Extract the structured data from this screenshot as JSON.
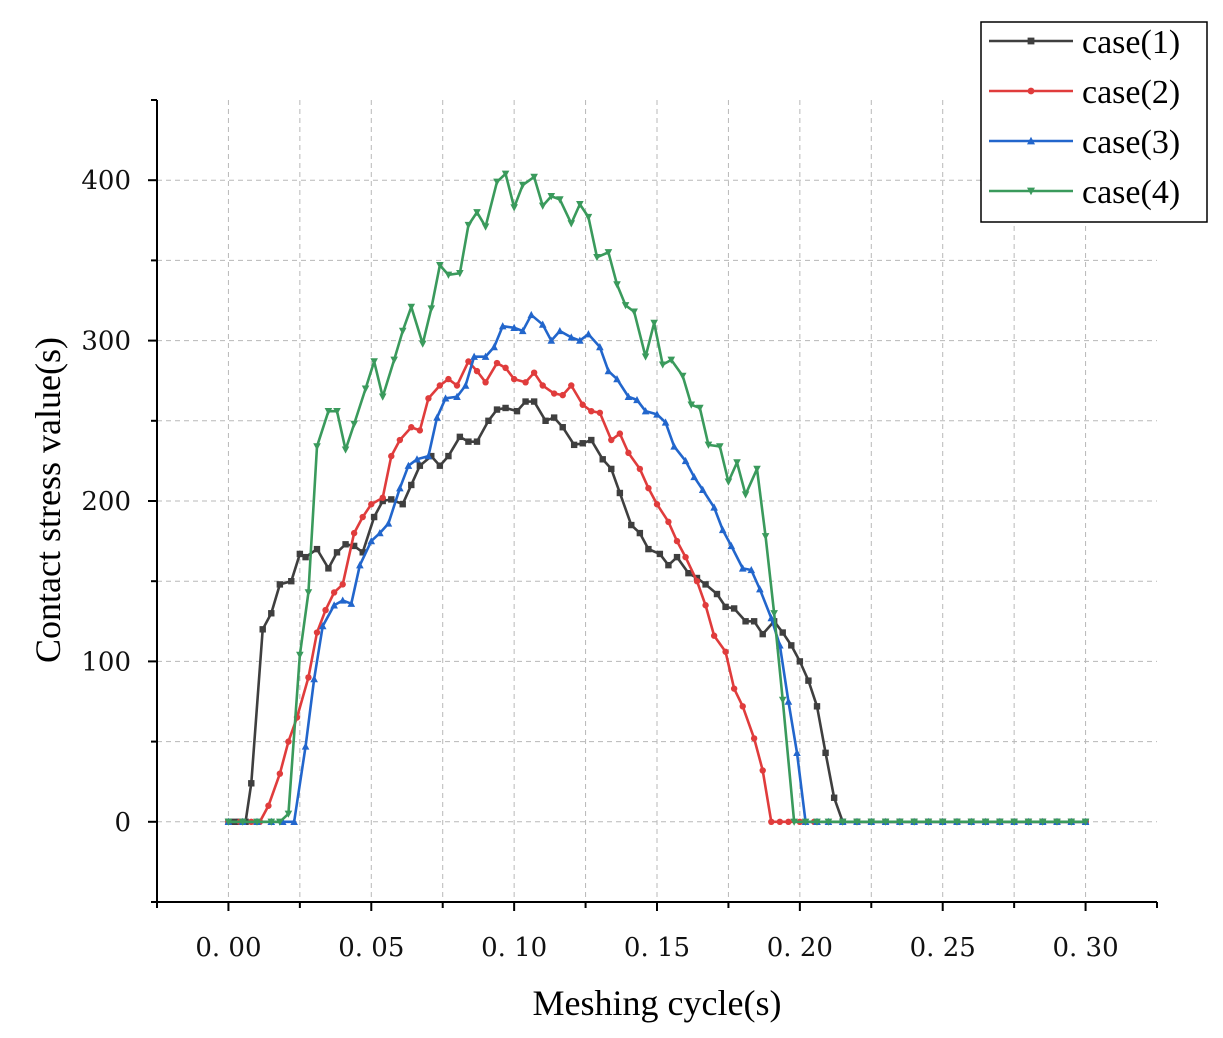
{
  "chart_data": {
    "type": "line",
    "title": "",
    "xlabel": "Meshing cycle(s)",
    "ylabel": "Contact stress value(s)",
    "xlim": [
      -0.025,
      0.325
    ],
    "ylim": [
      -50,
      450
    ],
    "x_ticks": [
      0.0,
      0.05,
      0.1,
      0.15,
      0.2,
      0.25,
      0.3
    ],
    "x_tick_labels": [
      "0. 00",
      "0. 05",
      "0. 10",
      "0. 15",
      "0. 20",
      "0. 25",
      "0. 30"
    ],
    "y_ticks": [
      0,
      100,
      200,
      300,
      400
    ],
    "y_tick_labels": [
      "0",
      "100",
      "200",
      "300",
      "400"
    ],
    "grid": true,
    "legend_position": "top-right",
    "series": [
      {
        "name": "case(1)",
        "color": "#3f3f3f",
        "marker": "square",
        "x": [
          0,
          0.002,
          0.004,
          0.006,
          0.008,
          0.012,
          0.015,
          0.018,
          0.022,
          0.025,
          0.027,
          0.031,
          0.035,
          0.038,
          0.041,
          0.044,
          0.047,
          0.051,
          0.054,
          0.057,
          0.061,
          0.064,
          0.067,
          0.071,
          0.074,
          0.077,
          0.081,
          0.084,
          0.087,
          0.091,
          0.094,
          0.097,
          0.101,
          0.104,
          0.107,
          0.111,
          0.114,
          0.117,
          0.121,
          0.124,
          0.127,
          0.131,
          0.134,
          0.137,
          0.141,
          0.144,
          0.147,
          0.151,
          0.154,
          0.157,
          0.161,
          0.164,
          0.167,
          0.171,
          0.174,
          0.177,
          0.181,
          0.184,
          0.187,
          0.191,
          0.194,
          0.197,
          0.2,
          0.203,
          0.206,
          0.209,
          0.212,
          0.215,
          0.22,
          0.225,
          0.23,
          0.235,
          0.24,
          0.245,
          0.25,
          0.255,
          0.26,
          0.265,
          0.27,
          0.275,
          0.28,
          0.285,
          0.29,
          0.295,
          0.3
        ],
        "y": [
          0,
          0,
          0,
          0,
          24,
          120,
          130,
          148,
          150,
          167,
          165,
          170,
          158,
          168,
          173,
          172,
          168,
          190,
          200,
          201,
          198,
          210,
          222,
          228,
          222,
          228,
          240,
          237,
          237,
          250,
          257,
          258,
          256,
          262,
          262,
          250,
          252,
          246,
          235,
          236,
          238,
          226,
          220,
          205,
          185,
          180,
          170,
          167,
          160,
          165,
          155,
          152,
          148,
          142,
          134,
          133,
          125,
          125,
          117,
          125,
          118,
          110,
          100,
          88,
          72,
          43,
          15,
          0,
          0,
          0,
          0,
          0,
          0,
          0,
          0,
          0,
          0,
          0,
          0,
          0,
          0,
          0,
          0,
          0,
          0
        ]
      },
      {
        "name": "case(2)",
        "color": "#e03c3c",
        "marker": "circle",
        "x": [
          0,
          0.004,
          0.008,
          0.011,
          0.014,
          0.018,
          0.021,
          0.024,
          0.028,
          0.031,
          0.034,
          0.037,
          0.04,
          0.044,
          0.047,
          0.05,
          0.054,
          0.057,
          0.06,
          0.064,
          0.067,
          0.07,
          0.074,
          0.077,
          0.08,
          0.084,
          0.087,
          0.09,
          0.094,
          0.097,
          0.1,
          0.104,
          0.107,
          0.11,
          0.114,
          0.117,
          0.12,
          0.124,
          0.127,
          0.13,
          0.134,
          0.137,
          0.14,
          0.144,
          0.147,
          0.15,
          0.154,
          0.157,
          0.16,
          0.164,
          0.167,
          0.17,
          0.174,
          0.177,
          0.18,
          0.184,
          0.187,
          0.19,
          0.193,
          0.196,
          0.2,
          0.205,
          0.21,
          0.215,
          0.22,
          0.225,
          0.23,
          0.235,
          0.24,
          0.245,
          0.25,
          0.255,
          0.26,
          0.265,
          0.27,
          0.275,
          0.28,
          0.285,
          0.29,
          0.295,
          0.3
        ],
        "y": [
          0,
          0,
          0,
          0,
          10,
          30,
          50,
          65,
          90,
          118,
          132,
          143,
          148,
          180,
          190,
          198,
          202,
          228,
          238,
          246,
          244,
          264,
          272,
          276,
          272,
          287,
          281,
          274,
          286,
          283,
          276,
          274,
          280,
          272,
          267,
          266,
          272,
          260,
          256,
          255,
          238,
          242,
          230,
          220,
          208,
          198,
          187,
          175,
          165,
          150,
          135,
          116,
          106,
          83,
          72,
          52,
          32,
          0,
          0,
          0,
          0,
          0,
          0,
          0,
          0,
          0,
          0,
          0,
          0,
          0,
          0,
          0,
          0,
          0,
          0,
          0,
          0,
          0,
          0,
          0,
          0
        ]
      },
      {
        "name": "case(3)",
        "color": "#2266cc",
        "marker": "triangle-up",
        "x": [
          0,
          0.005,
          0.01,
          0.015,
          0.019,
          0.023,
          0.027,
          0.03,
          0.033,
          0.037,
          0.04,
          0.043,
          0.046,
          0.05,
          0.053,
          0.056,
          0.06,
          0.063,
          0.066,
          0.07,
          0.073,
          0.076,
          0.08,
          0.083,
          0.086,
          0.09,
          0.093,
          0.096,
          0.1,
          0.103,
          0.106,
          0.11,
          0.113,
          0.116,
          0.12,
          0.123,
          0.126,
          0.13,
          0.133,
          0.136,
          0.14,
          0.143,
          0.146,
          0.15,
          0.153,
          0.156,
          0.16,
          0.163,
          0.166,
          0.17,
          0.173,
          0.176,
          0.18,
          0.183,
          0.186,
          0.19,
          0.193,
          0.196,
          0.199,
          0.202,
          0.206,
          0.21,
          0.215,
          0.22,
          0.225,
          0.23,
          0.235,
          0.24,
          0.245,
          0.25,
          0.255,
          0.26,
          0.265,
          0.27,
          0.275,
          0.28,
          0.285,
          0.29,
          0.295,
          0.3
        ],
        "y": [
          0,
          0,
          0,
          0,
          0,
          0,
          47,
          89,
          122,
          135,
          138,
          136,
          160,
          175,
          180,
          186,
          208,
          222,
          226,
          228,
          252,
          264,
          265,
          272,
          290,
          290,
          296,
          309,
          308,
          306,
          316,
          310,
          300,
          306,
          302,
          300,
          304,
          296,
          281,
          276,
          265,
          263,
          256,
          254,
          249,
          234,
          225,
          215,
          207,
          196,
          182,
          172,
          158,
          157,
          145,
          127,
          110,
          75,
          43,
          0,
          0,
          0,
          0,
          0,
          0,
          0,
          0,
          0,
          0,
          0,
          0,
          0,
          0,
          0,
          0,
          0,
          0,
          0,
          0,
          0
        ]
      },
      {
        "name": "case(4)",
        "color": "#3a9a5c",
        "marker": "triangle-down",
        "x": [
          0,
          0.005,
          0.01,
          0.015,
          0.018,
          0.021,
          0.025,
          0.028,
          0.031,
          0.035,
          0.038,
          0.041,
          0.044,
          0.048,
          0.051,
          0.054,
          0.058,
          0.061,
          0.064,
          0.068,
          0.071,
          0.074,
          0.077,
          0.081,
          0.084,
          0.087,
          0.09,
          0.094,
          0.097,
          0.1,
          0.103,
          0.107,
          0.11,
          0.113,
          0.116,
          0.12,
          0.123,
          0.126,
          0.129,
          0.133,
          0.136,
          0.139,
          0.142,
          0.146,
          0.149,
          0.152,
          0.155,
          0.159,
          0.162,
          0.165,
          0.168,
          0.172,
          0.175,
          0.178,
          0.181,
          0.185,
          0.188,
          0.191,
          0.194,
          0.198,
          0.202,
          0.206,
          0.21,
          0.215,
          0.22,
          0.225,
          0.23,
          0.235,
          0.24,
          0.245,
          0.25,
          0.255,
          0.26,
          0.265,
          0.27,
          0.275,
          0.28,
          0.285,
          0.29,
          0.295,
          0.3
        ],
        "y": [
          0,
          0,
          0,
          0,
          0,
          5,
          104,
          143,
          234,
          256,
          256,
          232,
          248,
          270,
          287,
          265,
          288,
          306,
          321,
          298,
          320,
          347,
          341,
          342,
          372,
          380,
          371,
          399,
          404,
          383,
          397,
          402,
          384,
          390,
          388,
          373,
          385,
          377,
          352,
          355,
          335,
          322,
          318,
          290,
          311,
          285,
          288,
          278,
          260,
          258,
          235,
          234,
          212,
          224,
          204,
          220,
          178,
          130,
          76,
          0,
          0,
          0,
          0,
          0,
          0,
          0,
          0,
          0,
          0,
          0,
          0,
          0,
          0,
          0,
          0,
          0,
          0,
          0,
          0,
          0,
          0
        ]
      }
    ]
  }
}
